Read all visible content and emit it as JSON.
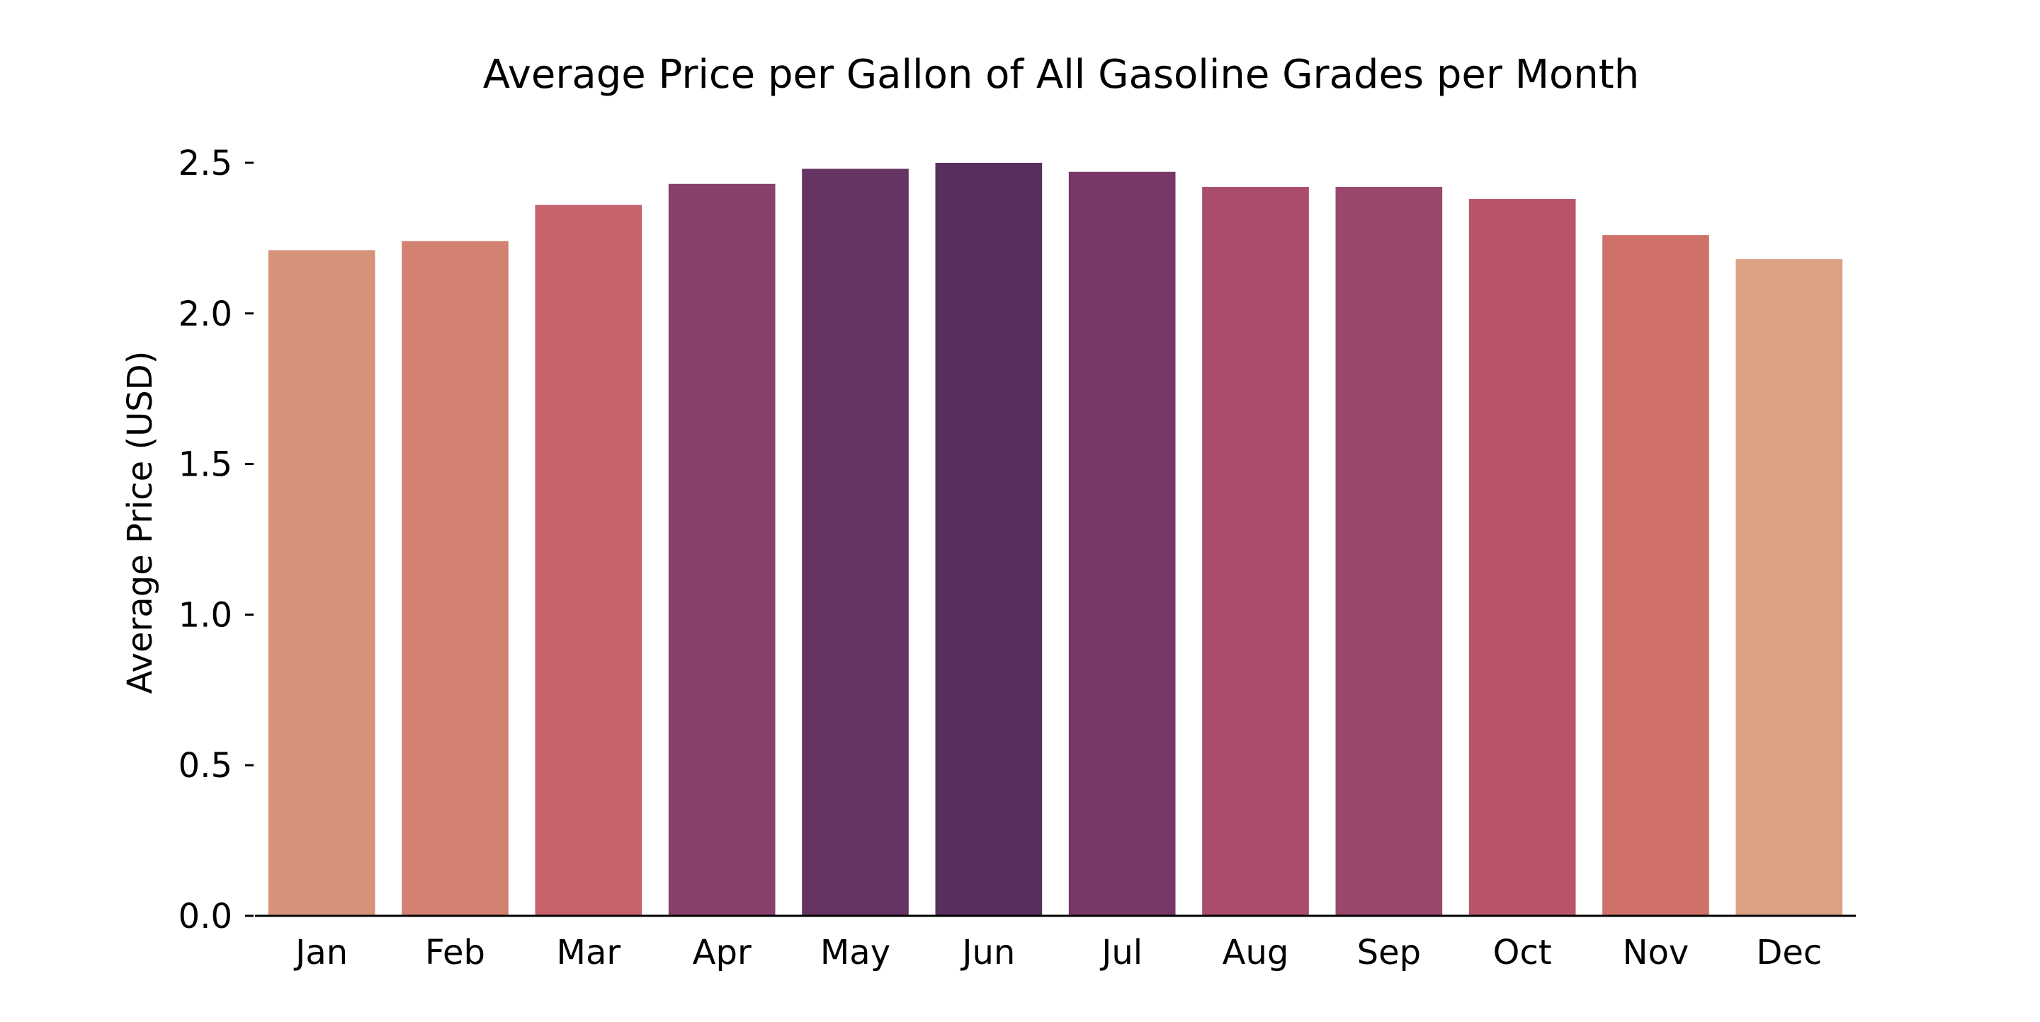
{
  "chart_data": {
    "type": "bar",
    "title": "Average Price per Gallon of All Gasoline Grades per Month",
    "xlabel": "",
    "ylabel": "Average Price (USD)",
    "categories": [
      "Jan",
      "Feb",
      "Mar",
      "Apr",
      "May",
      "Jun",
      "Jul",
      "Aug",
      "Sep",
      "Oct",
      "Nov",
      "Dec"
    ],
    "values": [
      2.21,
      2.24,
      2.36,
      2.43,
      2.48,
      2.5,
      2.47,
      2.42,
      2.42,
      2.38,
      2.26,
      2.18
    ],
    "colors": [
      "#d7937a",
      "#d38272",
      "#c6626a",
      "#88416b",
      "#663462",
      "#572f5d",
      "#783867",
      "#aa4d6c",
      "#99476c",
      "#b95569",
      "#cf7069",
      "#dca284"
    ],
    "yticks": [
      "0.0",
      "0.5",
      "1.0",
      "1.5",
      "2.0",
      "2.5"
    ],
    "ylim": [
      0,
      2.5
    ],
    "grid": false,
    "legend": "none"
  }
}
